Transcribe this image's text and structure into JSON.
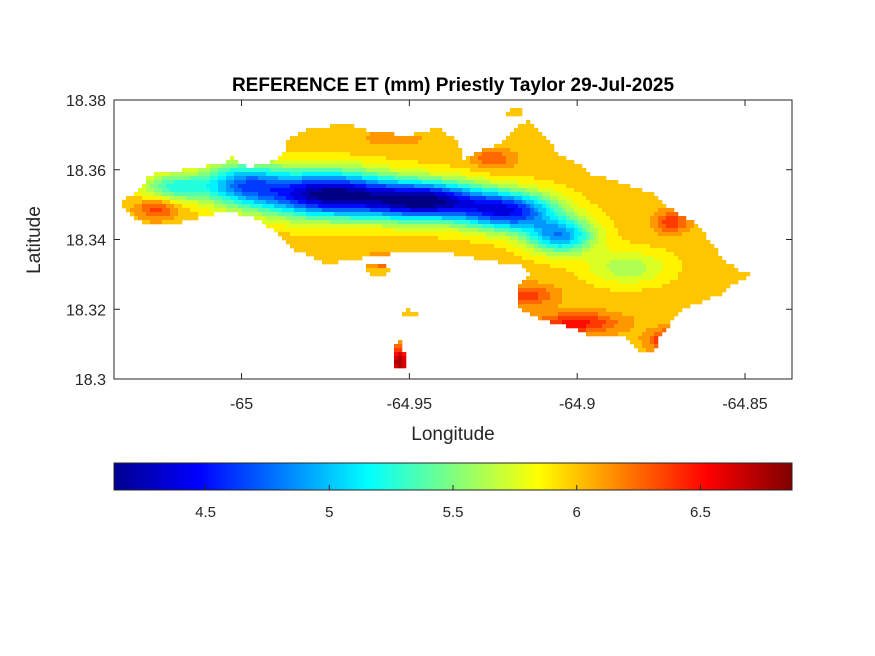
{
  "chart_data": {
    "type": "heatmap",
    "title": "REFERENCE ET (mm) Priestly Taylor 29-Jul-2025",
    "xlabel": "Longitude",
    "ylabel": "Latitude",
    "xlim": [
      -65.038,
      -64.836
    ],
    "ylim": [
      18.3,
      18.38
    ],
    "xticks": [
      -65,
      -64.95,
      -64.9,
      -64.85
    ],
    "xtick_labels": [
      "-65",
      "-64.95",
      "-64.9",
      "-64.85"
    ],
    "yticks": [
      18.3,
      18.32,
      18.34,
      18.36,
      18.38
    ],
    "ytick_labels": [
      "18.3",
      "18.32",
      "18.34",
      "18.36",
      "18.38"
    ],
    "colormap": "jet",
    "colorbar": {
      "orientation": "horizontal",
      "placement": "below",
      "clim": [
        4.13,
        6.87
      ],
      "ticks": [
        4.5,
        5,
        5.5,
        6,
        6.5
      ],
      "tick_labels": [
        "4.5",
        "5",
        "5.5",
        "6",
        "6.5"
      ]
    },
    "grid": false,
    "fields": {
      "baseline": 6.0,
      "lows": [
        {
          "lon": -64.975,
          "lat": 18.353,
          "value": 4.2,
          "rx": 0.02,
          "ry": 0.0065
        },
        {
          "lon": -64.945,
          "lat": 18.351,
          "value": 4.25,
          "rx": 0.018,
          "ry": 0.0055
        },
        {
          "lon": -64.92,
          "lat": 18.348,
          "value": 4.6,
          "rx": 0.014,
          "ry": 0.0055
        },
        {
          "lon": -64.905,
          "lat": 18.341,
          "value": 4.9,
          "rx": 0.01,
          "ry": 0.005
        },
        {
          "lon": -65.0,
          "lat": 18.356,
          "value": 5.0,
          "rx": 0.012,
          "ry": 0.006
        },
        {
          "lon": -65.02,
          "lat": 18.355,
          "value": 5.3,
          "rx": 0.01,
          "ry": 0.004
        },
        {
          "lon": -64.885,
          "lat": 18.332,
          "value": 5.6,
          "rx": 0.012,
          "ry": 0.005
        }
      ],
      "highs": [
        {
          "lon": -64.87,
          "lat": 18.311,
          "value": 6.8,
          "rx": 0.007,
          "ry": 0.003
        },
        {
          "lon": -64.9,
          "lat": 18.316,
          "value": 6.5,
          "rx": 0.012,
          "ry": 0.003
        },
        {
          "lon": -64.915,
          "lat": 18.324,
          "value": 6.4,
          "rx": 0.008,
          "ry": 0.003
        },
        {
          "lon": -65.025,
          "lat": 18.349,
          "value": 6.4,
          "rx": 0.006,
          "ry": 0.003
        },
        {
          "lon": -64.872,
          "lat": 18.345,
          "value": 6.4,
          "rx": 0.005,
          "ry": 0.003
        },
        {
          "lon": -64.925,
          "lat": 18.363,
          "value": 6.3,
          "rx": 0.006,
          "ry": 0.003
        },
        {
          "lon": -64.955,
          "lat": 18.369,
          "value": 6.1,
          "rx": 0.012,
          "ry": 0.003
        },
        {
          "lon": -64.953,
          "lat": 18.305,
          "value": 6.8,
          "rx": 0.003,
          "ry": 0.004
        },
        {
          "lon": -64.958,
          "lat": 18.334,
          "value": 6.4,
          "rx": 0.004,
          "ry": 0.002
        }
      ]
    },
    "land_outline": {
      "main_island": [
        [
          -65.036,
          18.3505
        ],
        [
          -65.03,
          18.3545
        ],
        [
          -65.028,
          18.3585
        ],
        [
          -65.02,
          18.3595
        ],
        [
          -65.012,
          18.361
        ],
        [
          -65.005,
          18.3615
        ],
        [
          -65.003,
          18.364
        ],
        [
          -64.998,
          18.3605
        ],
        [
          -64.992,
          18.362
        ],
        [
          -64.988,
          18.364
        ],
        [
          -64.986,
          18.369
        ],
        [
          -64.98,
          18.372
        ],
        [
          -64.968,
          18.373
        ],
        [
          -64.96,
          18.3705
        ],
        [
          -64.95,
          18.37
        ],
        [
          -64.942,
          18.372
        ],
        [
          -64.936,
          18.369
        ],
        [
          -64.934,
          18.363
        ],
        [
          -64.927,
          18.366
        ],
        [
          -64.922,
          18.368
        ],
        [
          -64.918,
          18.372
        ],
        [
          -64.915,
          18.374
        ],
        [
          -64.91,
          18.37
        ],
        [
          -64.905,
          18.364
        ],
        [
          -64.9,
          18.362
        ],
        [
          -64.895,
          18.358
        ],
        [
          -64.89,
          18.3575
        ],
        [
          -64.884,
          18.355
        ],
        [
          -64.878,
          18.3535
        ],
        [
          -64.871,
          18.348
        ],
        [
          -64.864,
          18.344
        ],
        [
          -64.857,
          18.335
        ],
        [
          -64.852,
          18.331
        ],
        [
          -64.848,
          18.33
        ],
        [
          -64.852,
          18.328
        ],
        [
          -64.858,
          18.324
        ],
        [
          -64.866,
          18.321
        ],
        [
          -64.87,
          18.319
        ],
        [
          -64.873,
          18.315
        ],
        [
          -64.876,
          18.311
        ],
        [
          -64.877,
          18.307
        ],
        [
          -64.882,
          18.3085
        ],
        [
          -64.886,
          18.312
        ],
        [
          -64.896,
          18.3125
        ],
        [
          -64.904,
          18.3155
        ],
        [
          -64.911,
          18.317
        ],
        [
          -64.917,
          18.32
        ],
        [
          -64.918,
          18.326
        ],
        [
          -64.914,
          18.33
        ],
        [
          -64.916,
          18.3325
        ],
        [
          -64.927,
          18.334
        ],
        [
          -64.94,
          18.3365
        ],
        [
          -64.955,
          18.336
        ],
        [
          -64.965,
          18.3345
        ],
        [
          -64.975,
          18.333
        ],
        [
          -64.985,
          18.3375
        ],
        [
          -64.99,
          18.342
        ],
        [
          -64.995,
          18.346
        ],
        [
          -65.005,
          18.348
        ],
        [
          -65.012,
          18.3465
        ],
        [
          -65.018,
          18.345
        ],
        [
          -65.024,
          18.345
        ],
        [
          -65.028,
          18.344
        ],
        [
          -65.032,
          18.3465
        ]
      ],
      "islets": [
        [
          [
            -64.963,
            18.3325
          ],
          [
            -64.958,
            18.333
          ],
          [
            -64.956,
            18.3315
          ],
          [
            -64.958,
            18.3295
          ],
          [
            -64.962,
            18.33
          ]
        ],
        [
          [
            -64.952,
            18.319
          ],
          [
            -64.95,
            18.32
          ],
          [
            -64.947,
            18.319
          ],
          [
            -64.949,
            18.3175
          ],
          [
            -64.952,
            18.318
          ]
        ],
        [
          [
            -64.955,
            18.31
          ],
          [
            -64.952,
            18.311
          ],
          [
            -64.951,
            18.304
          ],
          [
            -64.952,
            18.3025
          ],
          [
            -64.955,
            18.304
          ]
        ],
        [
          [
            -64.92,
            18.378
          ],
          [
            -64.916,
            18.377
          ],
          [
            -64.918,
            18.375
          ],
          [
            -64.921,
            18.376
          ]
        ],
        [
          [
            -64.976,
            18.336
          ],
          [
            -64.973,
            18.336
          ],
          [
            -64.973,
            18.334
          ],
          [
            -64.976,
            18.3345
          ]
        ]
      ]
    }
  }
}
